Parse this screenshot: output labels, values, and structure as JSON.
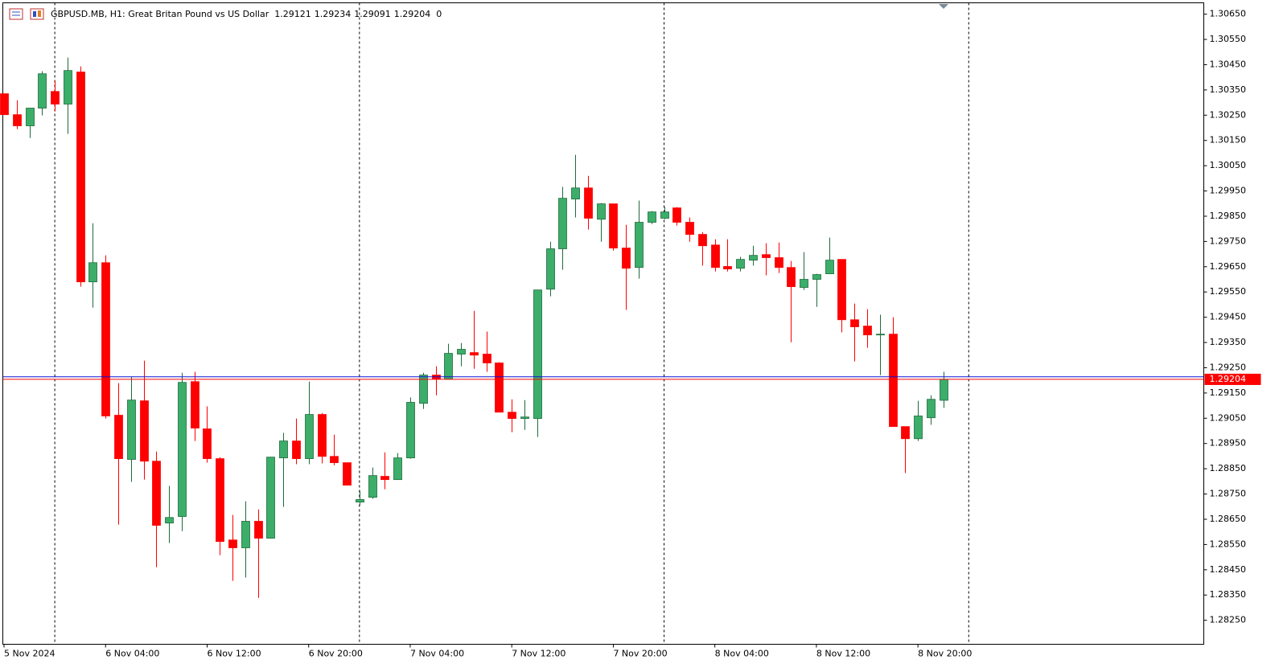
{
  "chart_data": {
    "type": "candlestick",
    "title": "GBPUSD.MB, H1:  Great Britan Pound vs US Dollar",
    "header_value": 0,
    "categories": [
      "5 Nov 2024",
      null,
      null,
      null,
      null,
      null,
      null,
      null,
      "6 Nov 04:00",
      null,
      null,
      null,
      null,
      null,
      null,
      null,
      "6 Nov 12:00",
      null,
      null,
      null,
      null,
      null,
      null,
      null,
      "6 Nov 20:00",
      null,
      null,
      null,
      null,
      null,
      null,
      null,
      "7 Nov 04:00",
      null,
      null,
      null,
      null,
      null,
      null,
      null,
      "7 Nov 12:00",
      null,
      null,
      null,
      null,
      null,
      null,
      null,
      "7 Nov 20:00",
      null,
      null,
      null,
      null,
      null,
      null,
      null,
      "8 Nov 04:00",
      null,
      null,
      null,
      null,
      null,
      null,
      null,
      "8 Nov 12:00",
      null,
      null,
      null,
      null,
      null,
      null,
      null,
      "8 Nov 20:00",
      null,
      null
    ],
    "open": [
      1.30335,
      1.30252,
      1.30208,
      1.30278,
      1.30344,
      1.30294,
      1.30421,
      1.2959,
      1.29666,
      1.29062,
      1.28887,
      1.29119,
      1.2888,
      1.28635,
      1.28661,
      1.29195,
      1.29008,
      1.2889,
      1.28568,
      1.28537,
      1.28642,
      1.28575,
      1.28893,
      1.2896,
      1.2889,
      1.29065,
      1.28899,
      1.28874,
      1.28718,
      1.28737,
      1.2882,
      1.28807,
      1.28893,
      1.29109,
      1.29221,
      1.29205,
      1.29304,
      1.2931,
      1.29304,
      1.29269,
      1.29074,
      1.29049,
      1.29049,
      1.29561,
      1.29721,
      1.29918,
      1.29962,
      1.29838,
      1.29899,
      1.29724,
      1.29647,
      1.29826,
      1.29842,
      1.29883,
      1.29826,
      1.29778,
      1.29736,
      1.29651,
      1.29644,
      1.29676,
      1.29698,
      1.29686,
      1.29647,
      1.29568,
      1.296,
      1.29622,
      1.29679,
      1.2944,
      1.29415,
      1.29383,
      1.29383,
      1.29017,
      1.28969,
      1.29052,
      1.29121
    ],
    "high": [
      1.30335,
      1.30309,
      1.30278,
      1.30424,
      1.30386,
      1.30478,
      1.30443,
      1.29822,
      1.29695,
      1.29189,
      1.29215,
      1.29278,
      1.28918,
      1.28782,
      1.2923,
      1.29234,
      1.29097,
      1.28896,
      1.28667,
      1.28721,
      1.28689,
      1.28896,
      1.28992,
      1.29049,
      1.29195,
      1.29071,
      1.28985,
      1.28874,
      1.28763,
      1.28855,
      1.28915,
      1.28912,
      1.29132,
      1.2923,
      1.29256,
      1.29345,
      1.29348,
      1.29475,
      1.29393,
      1.29272,
      1.29125,
      1.29122,
      1.29558,
      1.29749,
      1.29966,
      1.30093,
      1.3001,
      1.29902,
      1.29899,
      1.29816,
      1.29912,
      1.2987,
      1.29886,
      1.29886,
      1.29845,
      1.29787,
      1.29759,
      1.29759,
      1.29689,
      1.29733,
      1.29743,
      1.29746,
      1.29673,
      1.29708,
      1.29622,
      1.29765,
      1.29679,
      1.29504,
      1.29482,
      1.2946,
      1.2945,
      1.29017,
      1.29119,
      1.29141,
      1.29234
    ],
    "low": [
      1.30252,
      1.30195,
      1.3016,
      1.30249,
      1.30265,
      1.30176,
      1.29571,
      1.29488,
      1.29049,
      1.28629,
      1.28798,
      1.28807,
      1.2846,
      1.28556,
      1.28603,
      1.2896,
      1.28874,
      1.28508,
      1.28406,
      1.28419,
      1.28339,
      1.28575,
      1.28699,
      1.28868,
      1.28868,
      1.28871,
      1.28864,
      1.28785,
      1.28705,
      1.28731,
      1.28769,
      1.28807,
      1.2889,
      1.29087,
      1.29141,
      1.29205,
      1.29256,
      1.29246,
      1.29234,
      1.29074,
      1.28995,
      1.29004,
      1.28976,
      1.29533,
      1.29638,
      1.29845,
      1.29797,
      1.29749,
      1.29714,
      1.29479,
      1.29603,
      1.29819,
      1.29838,
      1.29813,
      1.29749,
      1.29654,
      1.29631,
      1.29631,
      1.29631,
      1.29654,
      1.29616,
      1.29625,
      1.29351,
      1.29558,
      1.29491,
      1.29622,
      1.2939,
      1.29275,
      1.29329,
      1.29221,
      1.29017,
      1.28833,
      1.2896,
      1.29024,
      1.29091
    ],
    "close": [
      1.30252,
      1.30208,
      1.30278,
      1.30414,
      1.30294,
      1.30427,
      1.2959,
      1.29666,
      1.29059,
      1.2889,
      1.29122,
      1.2888,
      1.28626,
      1.28657,
      1.29192,
      1.29011,
      1.2889,
      1.28562,
      1.28537,
      1.28642,
      1.28575,
      1.28896,
      1.2896,
      1.2889,
      1.29065,
      1.28899,
      1.28874,
      1.28785,
      1.28728,
      1.28823,
      1.28807,
      1.28893,
      1.29113,
      1.29221,
      1.29205,
      1.29307,
      1.29323,
      1.293,
      1.29269,
      1.29074,
      1.29049,
      1.29055,
      1.29558,
      1.29721,
      1.29921,
      1.29962,
      1.29842,
      1.29899,
      1.29724,
      1.29644,
      1.29826,
      1.29867,
      1.29867,
      1.29826,
      1.29778,
      1.29733,
      1.29647,
      1.29641,
      1.29679,
      1.29695,
      1.29686,
      1.29647,
      1.29571,
      1.296,
      1.29619,
      1.29676,
      1.2944,
      1.29412,
      1.2938,
      1.29383,
      1.29017,
      1.28969,
      1.29059,
      1.29125,
      1.29204
    ],
    "up_color": "#3cae6a",
    "down_color": "#ff0000",
    "bid": 1.29204,
    "ask": 1.29214,
    "bid_color": "#ff0000",
    "ask_color": "#1010d0",
    "ylim": [
      1.28155,
      1.30695
    ],
    "yticks": [
      {
        "value": 1.3065,
        "label": "1.30650"
      },
      {
        "value": 1.3055,
        "label": "1.30550"
      },
      {
        "value": 1.3045,
        "label": "1.30450"
      },
      {
        "value": 1.3035,
        "label": "1.30350"
      },
      {
        "value": 1.3025,
        "label": "1.30250"
      },
      {
        "value": 1.3015,
        "label": "1.30150"
      },
      {
        "value": 1.3005,
        "label": "1.30050"
      },
      {
        "value": 1.2995,
        "label": "1.29950"
      },
      {
        "value": 1.2985,
        "label": "1.29850"
      },
      {
        "value": 1.2975,
        "label": "1.29750"
      },
      {
        "value": 1.2965,
        "label": "1.29650"
      },
      {
        "value": 1.2955,
        "label": "1.29550"
      },
      {
        "value": 1.2945,
        "label": "1.29450"
      },
      {
        "value": 1.2935,
        "label": "1.29350"
      },
      {
        "value": 1.2925,
        "label": "1.29250"
      },
      {
        "value": 1.2915,
        "label": "1.29150"
      },
      {
        "value": 1.2905,
        "label": "1.29050"
      },
      {
        "value": 1.2895,
        "label": "1.28950"
      },
      {
        "value": 1.2885,
        "label": "1.28850"
      },
      {
        "value": 1.2875,
        "label": "1.28750"
      },
      {
        "value": 1.2865,
        "label": "1.28650"
      },
      {
        "value": 1.2855,
        "label": "1.28550"
      },
      {
        "value": 1.2845,
        "label": "1.28450"
      },
      {
        "value": 1.2835,
        "label": "1.28350"
      },
      {
        "value": 1.2825,
        "label": "1.28250"
      }
    ],
    "grid": false,
    "period_separators": true
  }
}
